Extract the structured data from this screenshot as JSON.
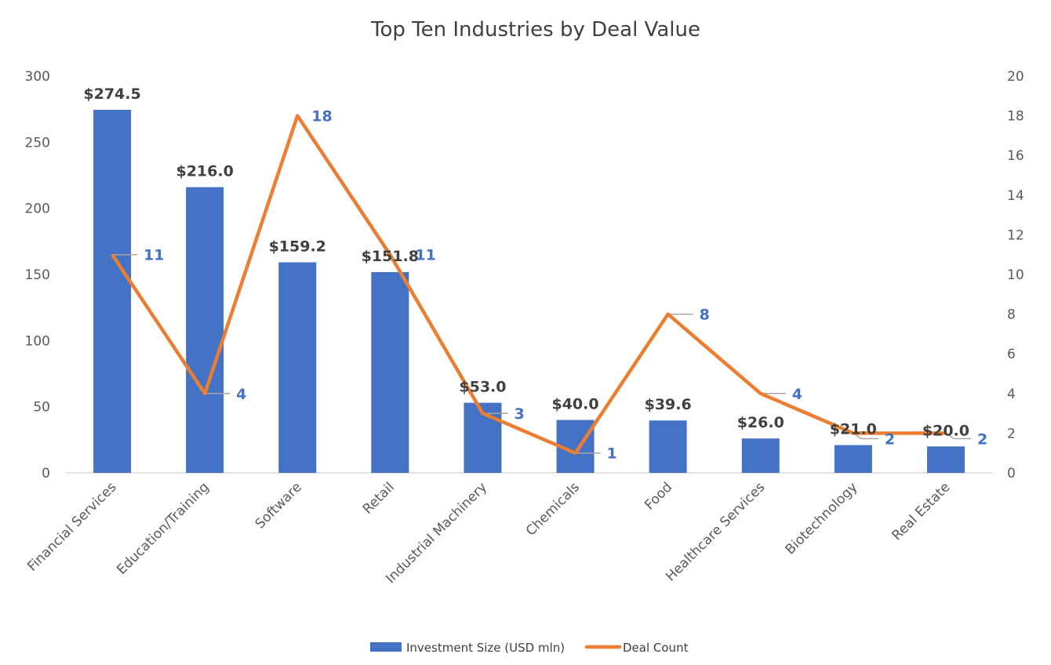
{
  "chart_data": {
    "type": "bar+line",
    "title": "Top Ten Industries by Deal Value",
    "categories": [
      "Financial Services",
      "Education/Training",
      "Software",
      "Retail",
      "Industrial Machinery",
      "Chemicals",
      "Food",
      "Healthcare Services",
      "Biotechnology",
      "Real Estate"
    ],
    "series": [
      {
        "name": "Investment Size (USD mln)",
        "type": "bar",
        "axis": "left",
        "color": "#4472c4",
        "values": [
          274.5,
          216.0,
          159.2,
          151.8,
          53.0,
          40.0,
          39.6,
          26.0,
          21.0,
          20.0
        ],
        "labels": [
          "$274.5",
          "$216.0",
          "$159.2",
          "$151.8",
          "$53.0",
          "$40.0",
          "$39.6",
          "$26.0",
          "$21.0",
          "$20.0"
        ]
      },
      {
        "name": "Deal Count",
        "type": "line",
        "axis": "right",
        "color": "#ed7d31",
        "values": [
          11,
          4,
          18,
          11,
          3,
          1,
          8,
          4,
          2,
          2
        ],
        "labels": [
          "11",
          "4",
          "18",
          "11",
          "3",
          "1",
          "8",
          "4",
          "2",
          "2"
        ]
      }
    ],
    "y_left": {
      "min": 0,
      "max": 300,
      "ticks": [
        "0",
        "50",
        "100",
        "150",
        "200",
        "250",
        "300"
      ]
    },
    "y_right": {
      "min": 0,
      "max": 20,
      "ticks": [
        "0",
        "2",
        "4",
        "6",
        "8",
        "10",
        "12",
        "14",
        "16",
        "18",
        "20"
      ]
    },
    "legend": {
      "position": "bottom",
      "entries": [
        "Investment Size (USD mln)",
        "Deal Count"
      ]
    },
    "grid": false
  }
}
